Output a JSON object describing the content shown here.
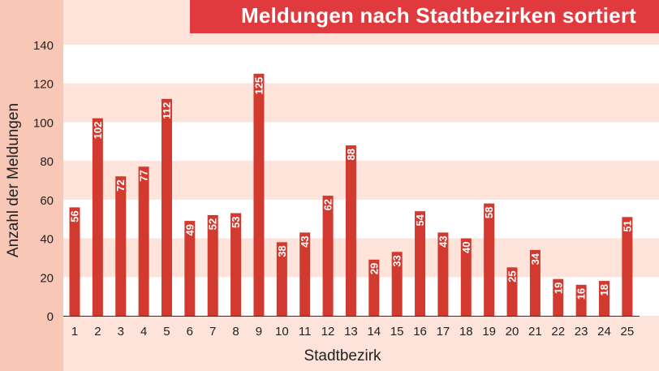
{
  "title": "Meldungen nach Stadtbezirken sortiert",
  "colors": {
    "background": "#fde3da",
    "left_panel": "#f8c7b5",
    "band_white": "#ffffff",
    "band_light": "#fde3da",
    "bar": "#d23a2f",
    "title_bar": "#e03a3f",
    "axis_text": "#222222",
    "bar_label": "#ffffff"
  },
  "chart_data": {
    "type": "bar",
    "title": "Meldungen nach Stadtbezirken sortiert",
    "xlabel": "Stadtbezirk",
    "ylabel": "Anzahl der Meldungen",
    "categories": [
      "1",
      "2",
      "3",
      "4",
      "5",
      "6",
      "7",
      "8",
      "9",
      "10",
      "11",
      "12",
      "13",
      "14",
      "15",
      "16",
      "17",
      "18",
      "19",
      "20",
      "21",
      "22",
      "23",
      "24",
      "25"
    ],
    "values": [
      56,
      102,
      72,
      77,
      112,
      49,
      52,
      53,
      125,
      38,
      43,
      62,
      88,
      29,
      33,
      54,
      43,
      40,
      58,
      25,
      34,
      19,
      16,
      18,
      51
    ],
    "yticks": [
      0,
      20,
      40,
      60,
      80,
      100,
      120,
      140
    ],
    "ylim": [
      0,
      140
    ],
    "grid": "alternating horizontal bands",
    "data_labels": "inside bar top, rotated vertical"
  }
}
